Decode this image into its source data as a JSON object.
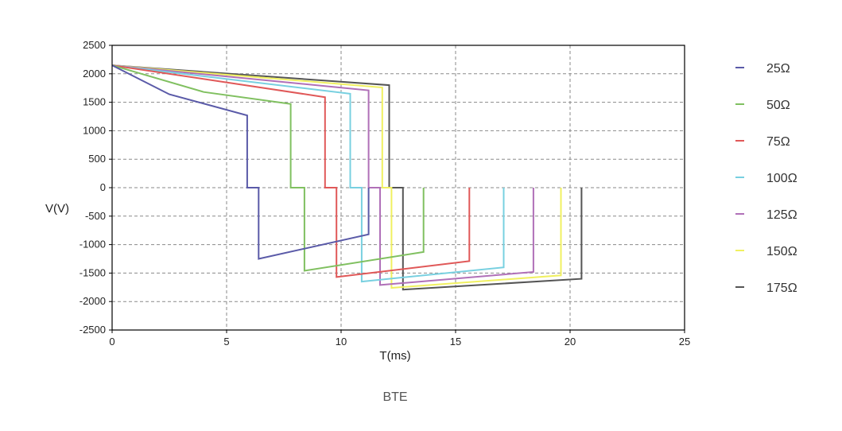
{
  "chart_data": {
    "type": "line",
    "caption": "BTE",
    "xlabel": "T(ms)",
    "ylabel": "V(V)",
    "xlim": [
      0,
      25
    ],
    "ylim": [
      -2500,
      2500
    ],
    "xticks": [
      0,
      5,
      10,
      15,
      20,
      25
    ],
    "yticks": [
      2500,
      2000,
      1500,
      1000,
      500,
      0,
      -500,
      -1000,
      -1500,
      -2000,
      -2500
    ],
    "grid": true,
    "legend_position": "right",
    "series": [
      {
        "name": "25Ω",
        "color": "#5a5aa8",
        "points": [
          [
            0,
            2150
          ],
          [
            2.5,
            1640
          ],
          [
            5.9,
            1270
          ],
          [
            5.9,
            0
          ],
          [
            6.4,
            0
          ],
          [
            6.4,
            -1250
          ],
          [
            11.2,
            -820
          ],
          [
            11.2,
            0
          ]
        ]
      },
      {
        "name": "50Ω",
        "color": "#80c060",
        "points": [
          [
            0,
            2150
          ],
          [
            4,
            1680
          ],
          [
            7.8,
            1470
          ],
          [
            7.8,
            0
          ],
          [
            8.4,
            0
          ],
          [
            8.4,
            -1460
          ],
          [
            13.6,
            -1130
          ],
          [
            13.6,
            0
          ]
        ]
      },
      {
        "name": "75Ω",
        "color": "#e05858",
        "points": [
          [
            0,
            2150
          ],
          [
            9.3,
            1590
          ],
          [
            9.3,
            0
          ],
          [
            9.8,
            0
          ],
          [
            9.8,
            -1570
          ],
          [
            15.6,
            -1290
          ],
          [
            15.6,
            0
          ]
        ]
      },
      {
        "name": "100Ω",
        "color": "#78d0e0",
        "points": [
          [
            0,
            2150
          ],
          [
            10.4,
            1650
          ],
          [
            10.4,
            0
          ],
          [
            10.9,
            0
          ],
          [
            10.9,
            -1650
          ],
          [
            17.1,
            -1400
          ],
          [
            17.1,
            0
          ]
        ]
      },
      {
        "name": "125Ω",
        "color": "#b070b8",
        "points": [
          [
            0,
            2150
          ],
          [
            11.2,
            1710
          ],
          [
            11.2,
            0
          ],
          [
            11.7,
            0
          ],
          [
            11.7,
            -1710
          ],
          [
            18.4,
            -1480
          ],
          [
            18.4,
            0
          ]
        ]
      },
      {
        "name": "150Ω",
        "color": "#f0f060",
        "points": [
          [
            0,
            2150
          ],
          [
            11.8,
            1760
          ],
          [
            11.8,
            0
          ],
          [
            12.2,
            0
          ],
          [
            12.2,
            -1760
          ],
          [
            19.6,
            -1540
          ],
          [
            19.6,
            0
          ]
        ]
      },
      {
        "name": "175Ω",
        "color": "#555555",
        "points": [
          [
            0,
            2150
          ],
          [
            12.1,
            1800
          ],
          [
            12.1,
            0
          ],
          [
            12.7,
            0
          ],
          [
            12.7,
            -1790
          ],
          [
            20.5,
            -1600
          ],
          [
            20.5,
            0
          ]
        ]
      }
    ]
  }
}
